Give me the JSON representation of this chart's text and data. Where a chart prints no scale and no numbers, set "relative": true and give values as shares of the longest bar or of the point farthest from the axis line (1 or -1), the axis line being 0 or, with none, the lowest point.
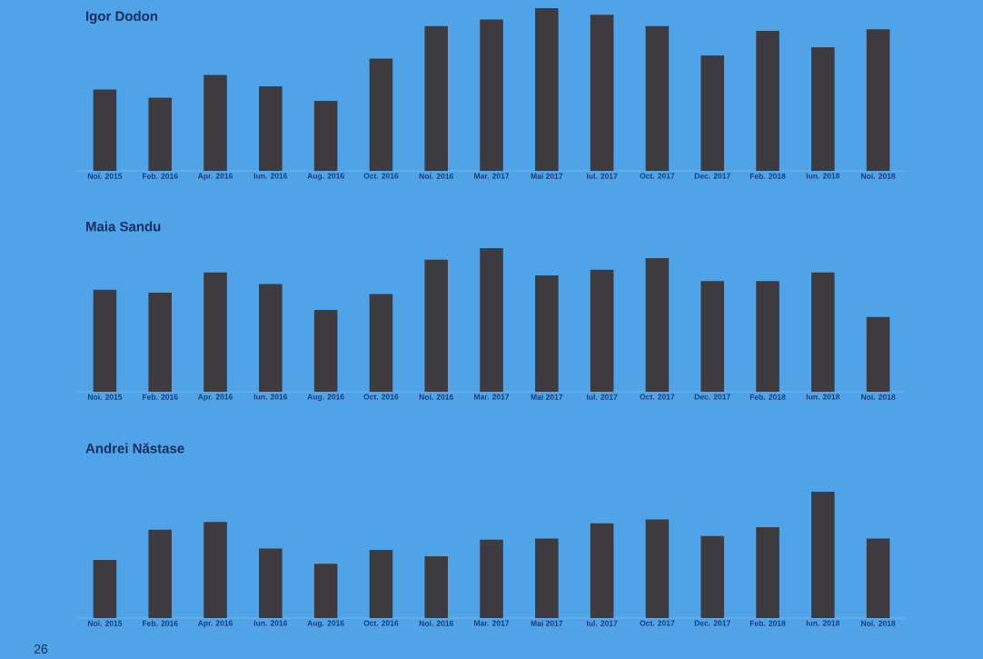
{
  "chart_data": [
    {
      "type": "bar",
      "title": "Igor Dodon",
      "categories": [
        "Noi. 2015",
        "Feb. 2016",
        "Apr. 2016",
        "Iun. 2016",
        "Aug. 2016",
        "Oct. 2016",
        "Noi. 2016",
        "Mar. 2017",
        "Mai 2017",
        "Iul. 2017",
        "Oct. 2017",
        "Dec. 2017",
        "Feb. 2018",
        "Iun. 2018",
        "Noi. 2018"
      ],
      "values": [
        0.5,
        0.45,
        0.59,
        0.52,
        0.43,
        0.69,
        0.89,
        0.93,
        1.0,
        0.96,
        0.89,
        0.71,
        0.86,
        0.76,
        0.87
      ],
      "color": "#3d3a40",
      "relative": true
    },
    {
      "type": "bar",
      "title": "Maia Sandu",
      "categories": [
        "Noi. 2015",
        "Feb. 2016",
        "Apr. 2016",
        "Iun. 2016",
        "Aug. 2016",
        "Oct. 2016",
        "Noi. 2016",
        "Mar. 2017",
        "Mai 2017",
        "Iul. 2017",
        "Oct. 2017",
        "Dec. 2017",
        "Feb. 2018",
        "Iun. 2018",
        "Noi. 2018"
      ],
      "values": [
        0.71,
        0.69,
        0.83,
        0.75,
        0.57,
        0.68,
        0.92,
        1.0,
        0.81,
        0.85,
        0.93,
        0.77,
        0.77,
        0.83,
        0.52
      ],
      "color": "#3d3a40",
      "relative": true
    },
    {
      "type": "bar",
      "title": "Andrei Năstase",
      "categories": [
        "Noi. 2015",
        "Feb. 2016",
        "Apr. 2016",
        "Iun. 2016",
        "Aug. 2016",
        "Oct. 2016",
        "Noi. 2016",
        "Mar. 2017",
        "Mai 2017",
        "Iul. 2017",
        "Oct. 2017",
        "Dec. 2017",
        "Feb. 2018",
        "Iun. 2018",
        "Noi. 2018"
      ],
      "values": [
        0.46,
        0.7,
        0.76,
        0.55,
        0.43,
        0.54,
        0.49,
        0.62,
        0.63,
        0.75,
        0.78,
        0.65,
        0.72,
        1.0,
        0.63
      ],
      "color": "#3d3a40",
      "relative": true,
      "annotations": [
        "26"
      ]
    }
  ]
}
